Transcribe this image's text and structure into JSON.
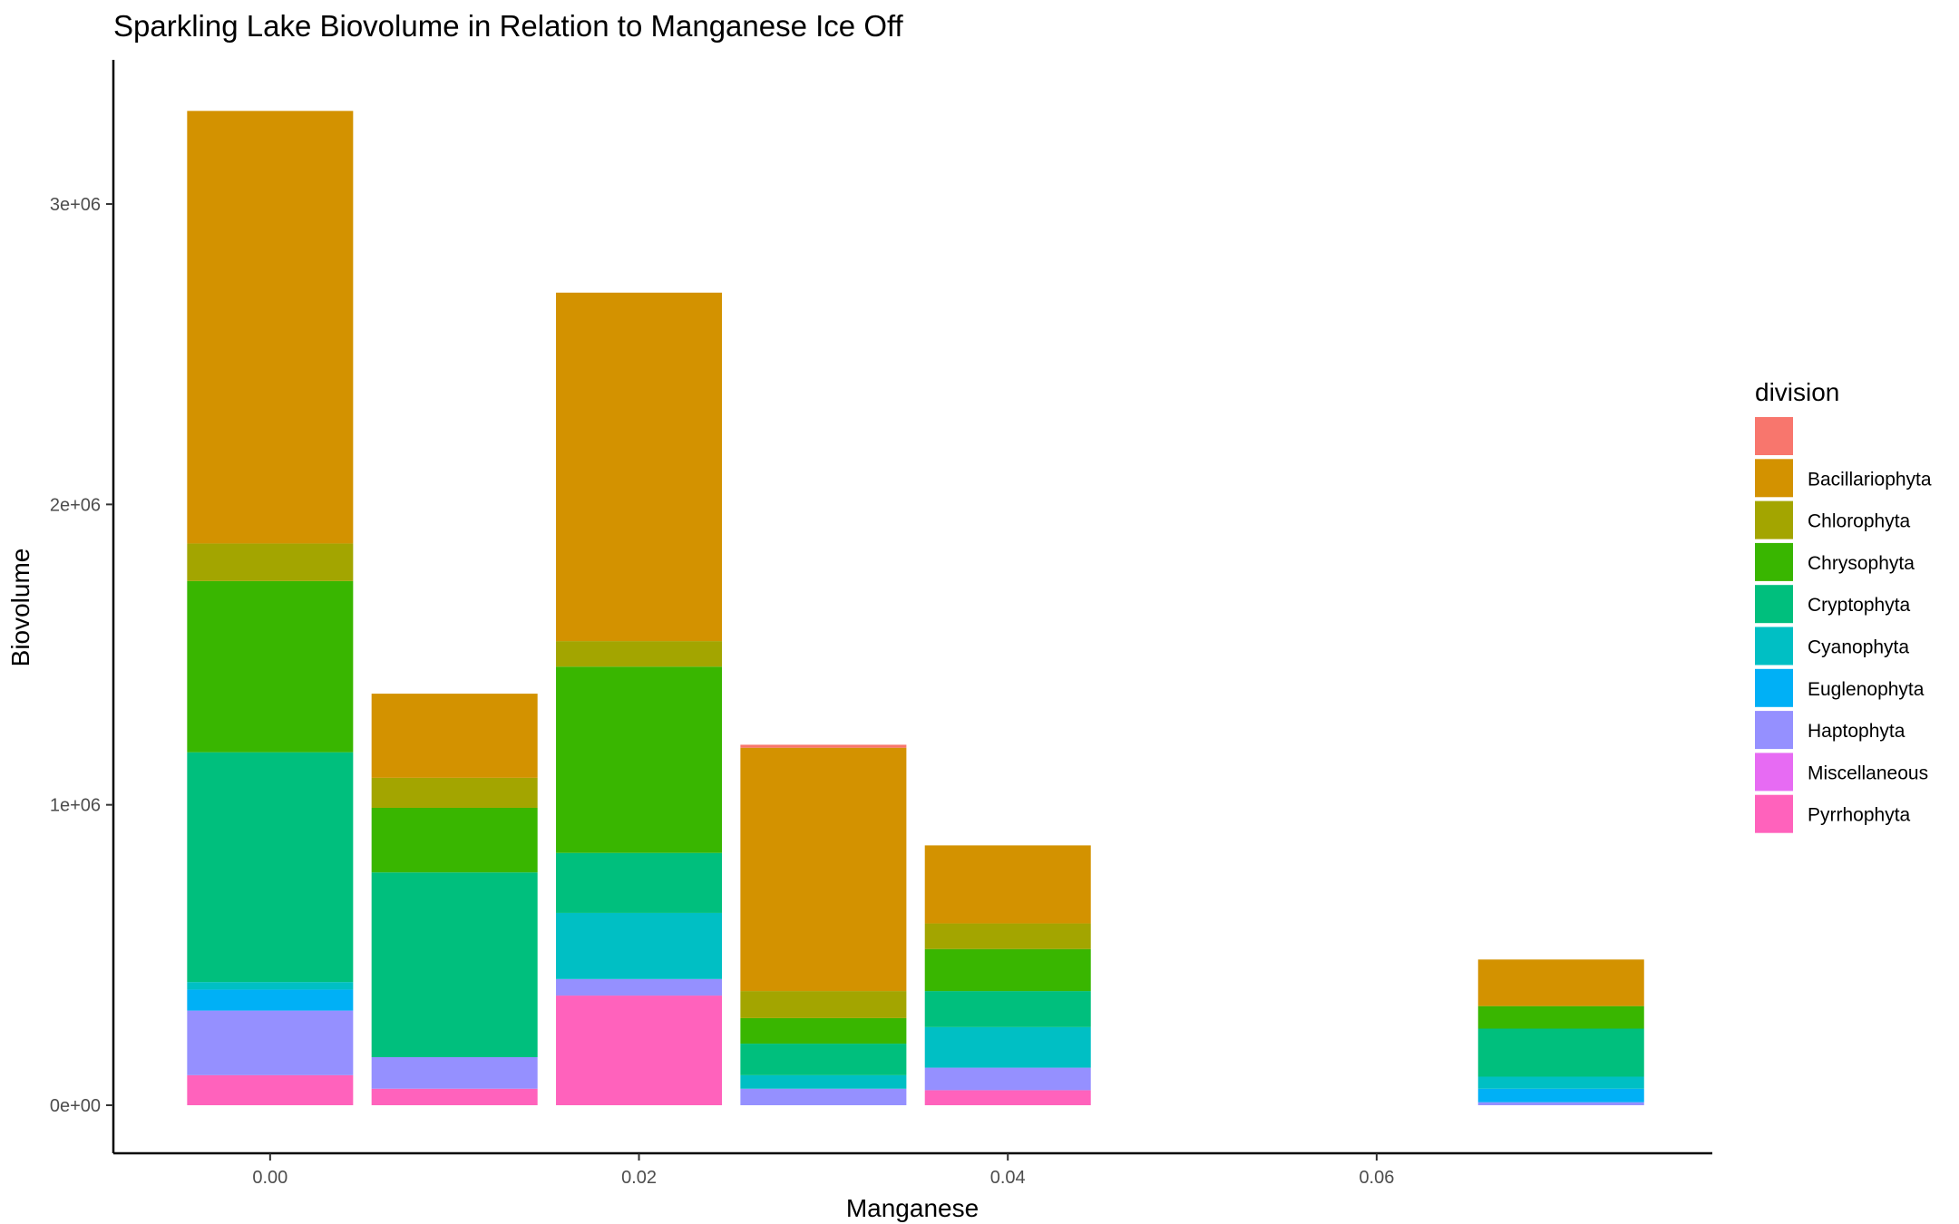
{
  "chart_data": {
    "type": "bar",
    "stacked": true,
    "title": "Sparkling Lake Biovolume in Relation to Manganese Ice Off",
    "xlabel": "Manganese",
    "ylabel": "Biovolume",
    "xlim": [
      -0.0085,
      0.0782
    ],
    "ylim": [
      -160000,
      3480000
    ],
    "x_ticks": [
      {
        "value": 0.0,
        "label": "0.00"
      },
      {
        "value": 0.02,
        "label": "0.02"
      },
      {
        "value": 0.04,
        "label": "0.04"
      },
      {
        "value": 0.06,
        "label": "0.06"
      }
    ],
    "y_ticks": [
      {
        "value": 0,
        "label": "0e+00"
      },
      {
        "value": 1000000,
        "label": "1e+06"
      },
      {
        "value": 2000000,
        "label": "2e+06"
      },
      {
        "value": 3000000,
        "label": "3e+06"
      }
    ],
    "bar_width": 0.009,
    "grid": false,
    "legend_title": "division",
    "legend_position": "right",
    "x": [
      0.0,
      0.01,
      0.02,
      0.03,
      0.04,
      0.07
    ],
    "series": [
      {
        "name": "",
        "color": "#F8766D",
        "values": [
          0,
          0,
          0,
          10000,
          0,
          0
        ]
      },
      {
        "name": "Bacillariophyta",
        "color": "#D39200",
        "values": [
          1440000,
          280000,
          1160000,
          810000,
          260000,
          155000
        ]
      },
      {
        "name": "Chlorophyta",
        "color": "#A3A500",
        "values": [
          125000,
          100000,
          85000,
          90000,
          85000,
          0
        ]
      },
      {
        "name": "Chrysophyta",
        "color": "#39B600",
        "values": [
          570000,
          215000,
          620000,
          85000,
          140000,
          75000
        ]
      },
      {
        "name": "Cryptophyta",
        "color": "#00BF7D",
        "values": [
          765000,
          615000,
          200000,
          105000,
          120000,
          160000
        ]
      },
      {
        "name": "Cyanophyta",
        "color": "#00BFC4",
        "values": [
          25000,
          0,
          220000,
          45000,
          135000,
          40000
        ]
      },
      {
        "name": "Euglenophyta",
        "color": "#00B0F6",
        "values": [
          70000,
          0,
          0,
          0,
          0,
          45000
        ]
      },
      {
        "name": "Haptophyta",
        "color": "#9590FF",
        "values": [
          215000,
          105000,
          55000,
          55000,
          75000,
          10000
        ]
      },
      {
        "name": "Miscellaneous",
        "color": "#E76BF3",
        "values": [
          0,
          0,
          0,
          0,
          0,
          0
        ]
      },
      {
        "name": "Pyrrhophyta",
        "color": "#FF62BC",
        "values": [
          100000,
          55000,
          365000,
          0,
          50000,
          0
        ]
      }
    ]
  }
}
